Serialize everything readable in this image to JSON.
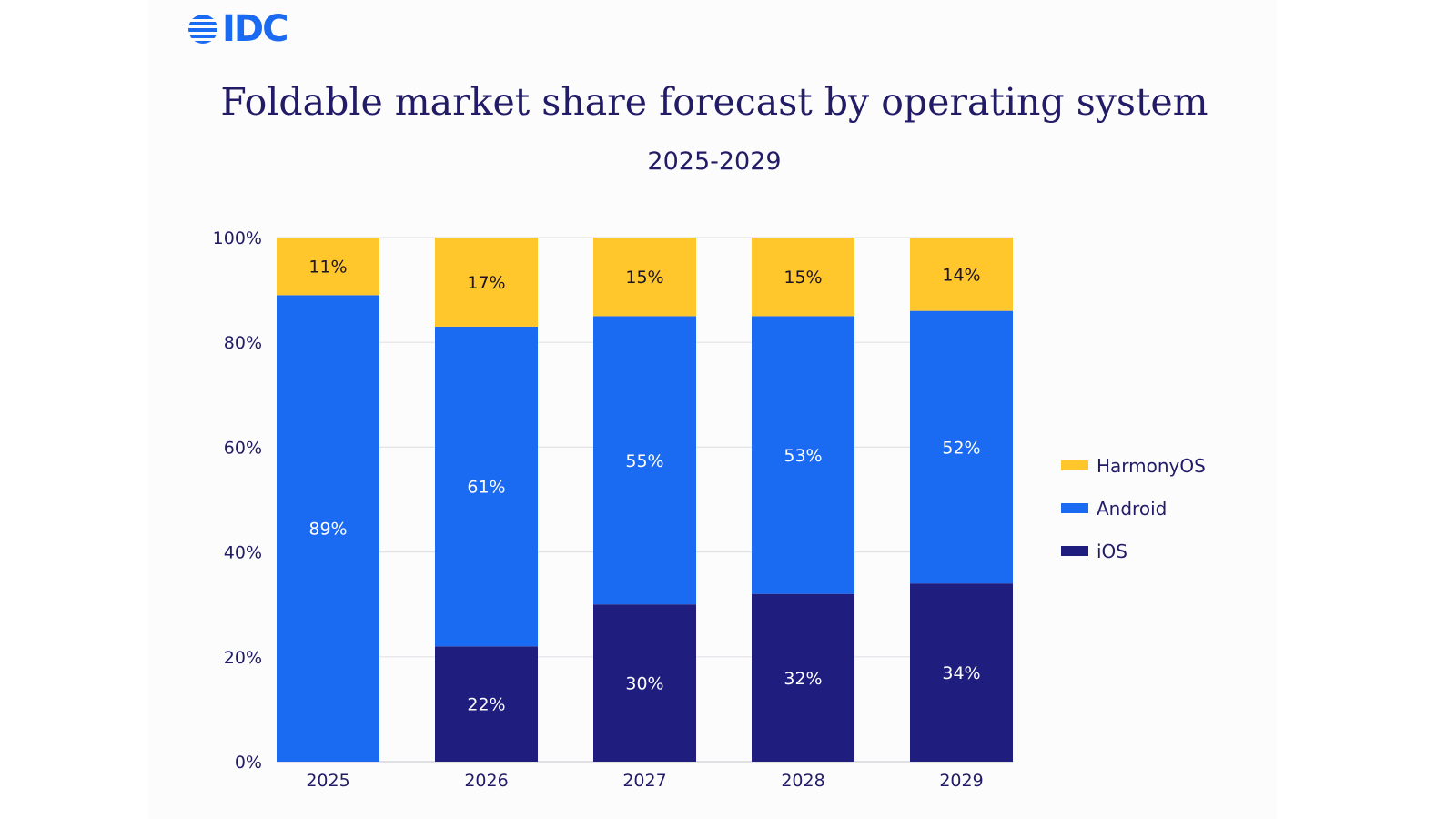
{
  "logo": {
    "text": "IDC",
    "icon": "globe-stripes-icon",
    "color": "#1a6af2"
  },
  "chart_data": {
    "type": "bar",
    "stacked": true,
    "title": "Foldable market share forecast by operating system",
    "subtitle": "2025-2029",
    "xlabel": "",
    "ylabel": "",
    "ylim": [
      0,
      100
    ],
    "yticks": [
      0,
      20,
      40,
      60,
      80,
      100
    ],
    "ytick_labels": [
      "0%",
      "20%",
      "40%",
      "60%",
      "80%",
      "100%"
    ],
    "grid": true,
    "legend_position": "right",
    "categories": [
      "2025",
      "2026",
      "2027",
      "2028",
      "2029"
    ],
    "series": [
      {
        "name": "iOS",
        "color": "#1f1d7e",
        "label_color": "#ffffff",
        "values": [
          0,
          22,
          30,
          32,
          34
        ]
      },
      {
        "name": "Android",
        "color": "#1a6af2",
        "label_color": "#ffffff",
        "values": [
          89,
          61,
          55,
          53,
          52
        ]
      },
      {
        "name": "HarmonyOS",
        "color": "#ffc72c",
        "label_color": "#1a1423",
        "values": [
          11,
          17,
          15,
          15,
          14
        ]
      }
    ],
    "legend_order": [
      "HarmonyOS",
      "Android",
      "iOS"
    ],
    "value_suffix": "%"
  }
}
